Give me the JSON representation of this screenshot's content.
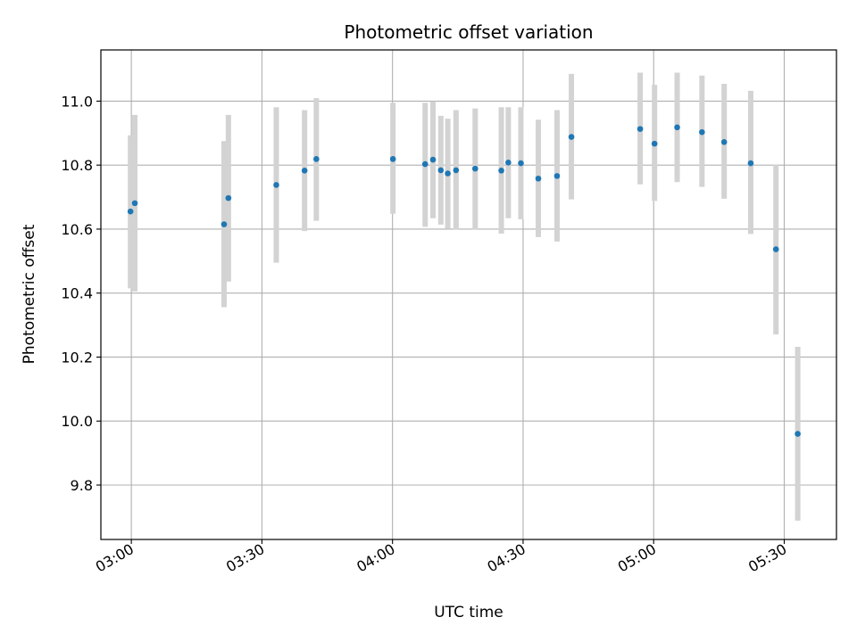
{
  "chart_data": {
    "type": "scatter",
    "title": "Photometric offset variation",
    "xlabel": "UTC time",
    "ylabel": "Photometric offset",
    "x_axis": {
      "kind": "time",
      "range": [
        "02:53",
        "05:42"
      ],
      "ticks": [
        "03:00",
        "03:30",
        "04:00",
        "04:30",
        "05:00",
        "05:30"
      ]
    },
    "y_axis": {
      "range": [
        9.63,
        11.16
      ],
      "ticks": [
        "9.8",
        "10.0",
        "10.2",
        "10.4",
        "10.6",
        "10.8",
        "11.0"
      ]
    },
    "grid": true,
    "legend": "none",
    "colors": {
      "point": "#1f77b4",
      "errorbar": "#d3d3d3",
      "grid": "#b0b0b0"
    },
    "points": [
      {
        "x": "02:59:48",
        "y": 10.655,
        "err": [
          10.415,
          10.893
        ]
      },
      {
        "x": "03:00:48",
        "y": 10.681,
        "err": [
          10.405,
          10.957
        ]
      },
      {
        "x": "03:21:18",
        "y": 10.615,
        "err": [
          10.356,
          10.875
        ]
      },
      {
        "x": "03:22:18",
        "y": 10.697,
        "err": [
          10.436,
          10.957
        ]
      },
      {
        "x": "03:33:18",
        "y": 10.738,
        "err": [
          10.495,
          10.981
        ]
      },
      {
        "x": "03:39:48",
        "y": 10.783,
        "err": [
          10.594,
          10.972
        ]
      },
      {
        "x": "03:42:30",
        "y": 10.819,
        "err": [
          10.626,
          11.009
        ]
      },
      {
        "x": "04:00:06",
        "y": 10.819,
        "err": [
          10.648,
          10.995
        ]
      },
      {
        "x": "04:07:30",
        "y": 10.803,
        "err": [
          10.607,
          10.995
        ]
      },
      {
        "x": "04:09:18",
        "y": 10.817,
        "err": [
          10.634,
          10.999
        ]
      },
      {
        "x": "04:11:06",
        "y": 10.784,
        "err": [
          10.614,
          10.954
        ]
      },
      {
        "x": "04:12:42",
        "y": 10.774,
        "err": [
          10.602,
          10.945
        ]
      },
      {
        "x": "04:14:36",
        "y": 10.784,
        "err": [
          10.599,
          10.972
        ]
      },
      {
        "x": "04:19:00",
        "y": 10.789,
        "err": [
          10.599,
          10.977
        ]
      },
      {
        "x": "04:25:00",
        "y": 10.783,
        "err": [
          10.586,
          10.981
        ]
      },
      {
        "x": "04:26:36",
        "y": 10.808,
        "err": [
          10.634,
          10.981
        ]
      },
      {
        "x": "04:29:30",
        "y": 10.806,
        "err": [
          10.631,
          10.981
        ]
      },
      {
        "x": "04:33:30",
        "y": 10.758,
        "err": [
          10.575,
          10.942
        ]
      },
      {
        "x": "04:37:48",
        "y": 10.766,
        "err": [
          10.561,
          10.972
        ]
      },
      {
        "x": "04:41:06",
        "y": 10.888,
        "err": [
          10.693,
          11.085
        ]
      },
      {
        "x": "04:56:54",
        "y": 10.913,
        "err": [
          10.74,
          11.089
        ]
      },
      {
        "x": "05:00:12",
        "y": 10.867,
        "err": [
          10.688,
          11.051
        ]
      },
      {
        "x": "05:05:24",
        "y": 10.918,
        "err": [
          10.747,
          11.089
        ]
      },
      {
        "x": "05:11:06",
        "y": 10.903,
        "err": [
          10.732,
          11.08
        ]
      },
      {
        "x": "05:16:12",
        "y": 10.872,
        "err": [
          10.695,
          11.054
        ]
      },
      {
        "x": "05:22:18",
        "y": 10.806,
        "err": [
          10.585,
          11.032
        ]
      },
      {
        "x": "05:28:06",
        "y": 10.537,
        "err": [
          10.271,
          10.801
        ]
      },
      {
        "x": "05:33:06",
        "y": 9.96,
        "err": [
          9.689,
          10.232
        ]
      }
    ]
  }
}
